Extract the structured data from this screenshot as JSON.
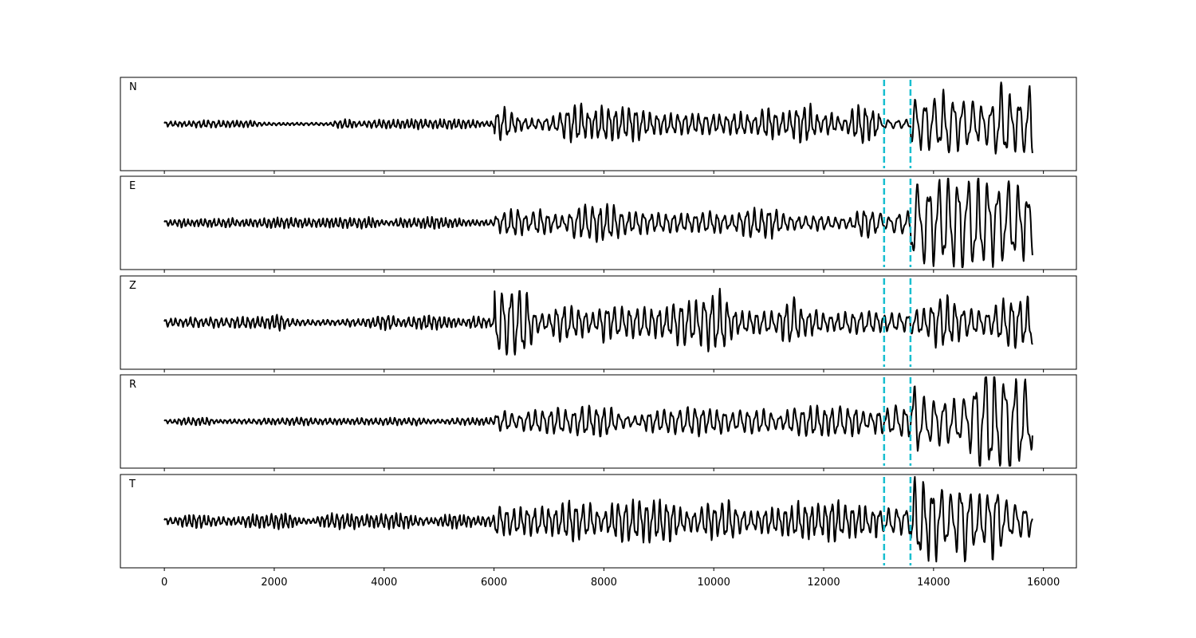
{
  "chart_data": {
    "type": "line",
    "x_ticks": [
      0,
      2000,
      4000,
      6000,
      8000,
      10000,
      12000,
      14000,
      16000
    ],
    "xlim": [
      -800,
      16600
    ],
    "ylim": [
      -1.0,
      1.0
    ],
    "grid": false,
    "line_color": "#000000",
    "marker_color": "#17becf",
    "markers": [
      13100,
      13580
    ],
    "trace_span": [
      0,
      15800
    ],
    "panels": [
      {
        "label": "N",
        "segments": [
          {
            "x": [
              0,
              6000
            ],
            "amp": 0.09,
            "period": 90
          },
          {
            "x": [
              6000,
              13000
            ],
            "amp": 0.32,
            "period": 130
          },
          {
            "x": [
              13000,
              13580
            ],
            "amp": 0.14,
            "period": 160
          },
          {
            "x": [
              13580,
              15800
            ],
            "amp": 0.78,
            "period": 180
          }
        ]
      },
      {
        "label": "E",
        "segments": [
          {
            "x": [
              0,
              6000
            ],
            "amp": 0.1,
            "period": 85
          },
          {
            "x": [
              6000,
              13000
            ],
            "amp": 0.28,
            "period": 140
          },
          {
            "x": [
              13000,
              13580
            ],
            "amp": 0.22,
            "period": 170
          },
          {
            "x": [
              13580,
              15800
            ],
            "amp": 0.72,
            "period": 190
          }
        ]
      },
      {
        "label": "Z",
        "segments": [
          {
            "x": [
              0,
              6000
            ],
            "amp": 0.14,
            "period": 95
          },
          {
            "x": [
              6000,
              6700
            ],
            "amp": 0.8,
            "period": 150
          },
          {
            "x": [
              6700,
              13000
            ],
            "amp": 0.5,
            "period": 140
          },
          {
            "x": [
              13000,
              15800
            ],
            "amp": 0.42,
            "period": 150
          }
        ]
      },
      {
        "label": "R",
        "segments": [
          {
            "x": [
              0,
              6000
            ],
            "amp": 0.07,
            "period": 90
          },
          {
            "x": [
              6000,
              13000
            ],
            "amp": 0.26,
            "period": 140
          },
          {
            "x": [
              13000,
              13580
            ],
            "amp": 0.3,
            "period": 170
          },
          {
            "x": [
              13580,
              15800
            ],
            "amp": 0.85,
            "period": 190
          }
        ]
      },
      {
        "label": "T",
        "segments": [
          {
            "x": [
              0,
              6000
            ],
            "amp": 0.12,
            "period": 90
          },
          {
            "x": [
              6000,
              13000
            ],
            "amp": 0.36,
            "period": 130
          },
          {
            "x": [
              13000,
              13580
            ],
            "amp": 0.2,
            "period": 160
          },
          {
            "x": [
              13580,
              15800
            ],
            "amp": 0.72,
            "period": 170
          }
        ]
      }
    ]
  }
}
